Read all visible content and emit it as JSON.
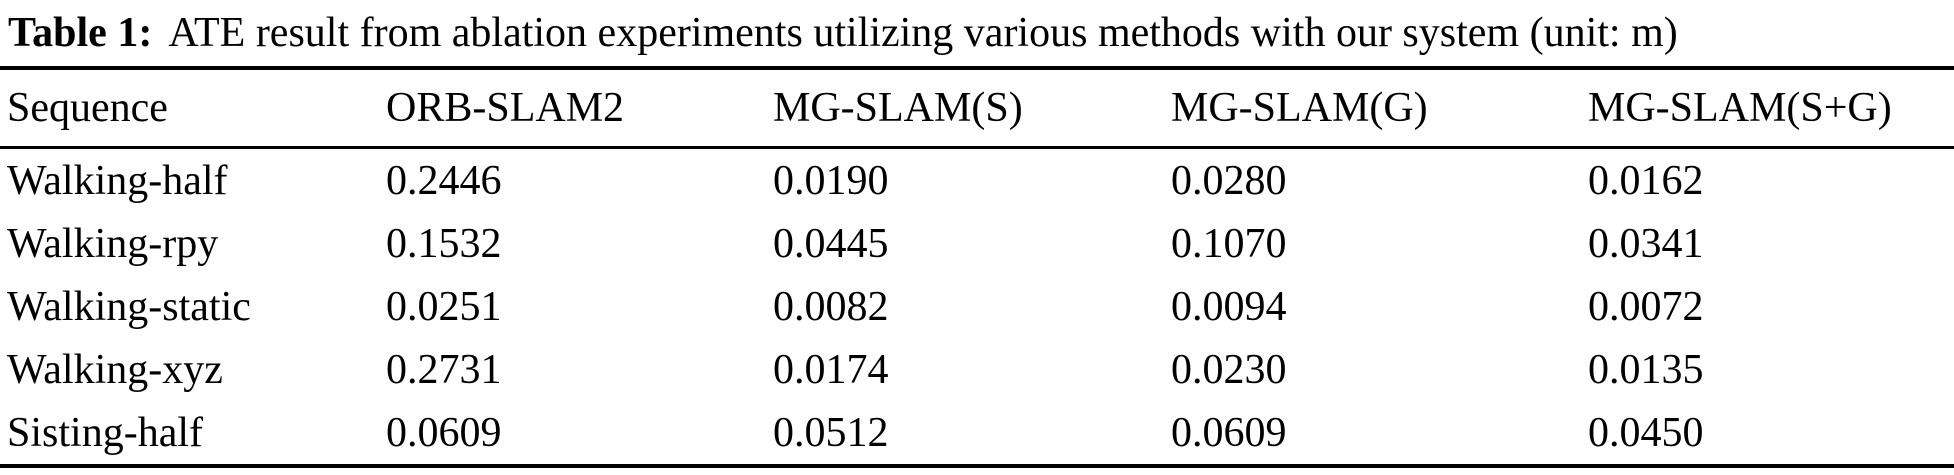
{
  "page": {
    "background_color": "#ffffff",
    "text_color": "#000000"
  },
  "caption": {
    "label": "Table 1:",
    "text": "ATE result from ablation experiments utilizing various methods with our system (unit: m)"
  },
  "table": {
    "columns": [
      "Sequence",
      "ORB-SLAM2",
      "MG-SLAM(S)",
      "MG-SLAM(G)",
      "MG-SLAM(S+G)"
    ],
    "rows": [
      [
        "Walking-half",
        "0.2446",
        "0.0190",
        "0.0280",
        "0.0162"
      ],
      [
        "Walking-rpy",
        "0.1532",
        "0.0445",
        "0.1070",
        "0.0341"
      ],
      [
        "Walking-static",
        "0.0251",
        "0.0082",
        "0.0094",
        "0.0072"
      ],
      [
        "Walking-xyz",
        "0.2731",
        "0.0174",
        "0.0230",
        "0.0135"
      ],
      [
        "Sisting-half",
        "0.0609",
        "0.0512",
        "0.0609",
        "0.0450"
      ]
    ]
  }
}
